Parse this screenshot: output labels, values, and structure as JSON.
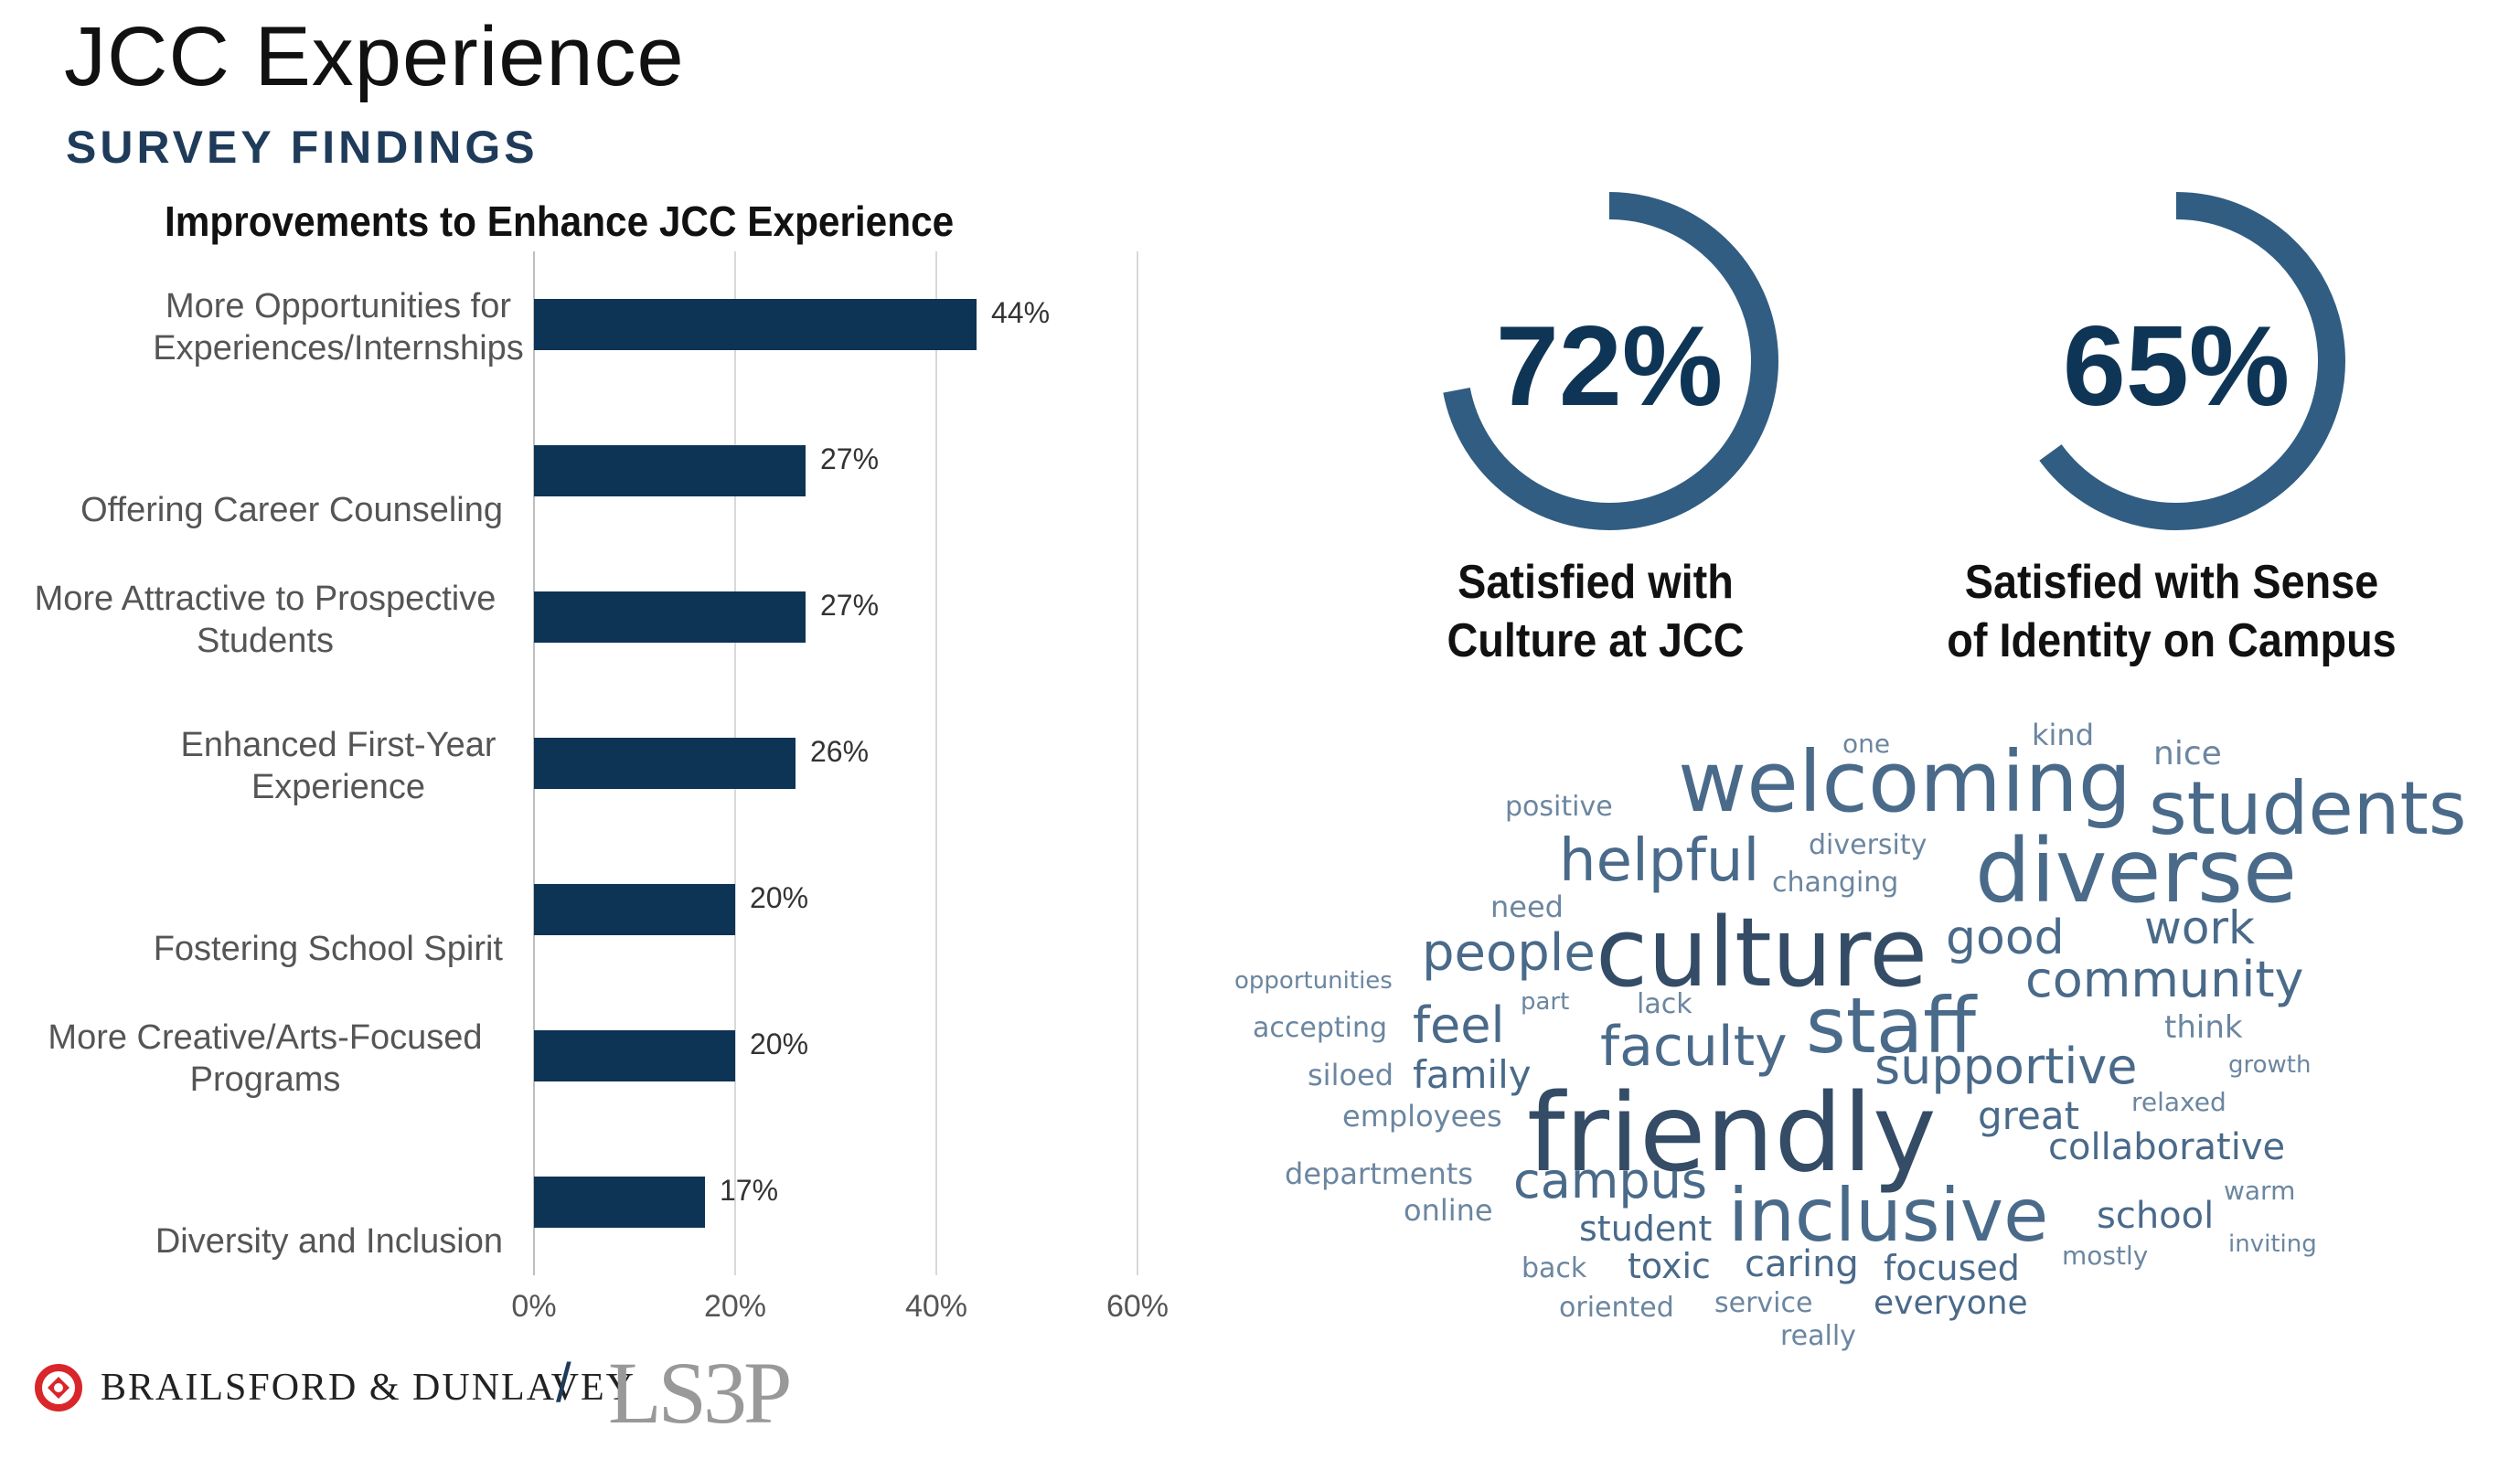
{
  "header": {
    "title": "JCC Experience",
    "subtitle": "SURVEY FINDINGS"
  },
  "chart_data": {
    "type": "bar",
    "orientation": "horizontal",
    "title": "Improvements to Enhance JCC Experience",
    "categories": [
      [
        "More Opportunities for",
        "Experiences/Internships"
      ],
      [
        "Offering Career Counseling"
      ],
      [
        "More Attractive to Prospective",
        "Students"
      ],
      [
        "Enhanced First-Year",
        "Experience"
      ],
      [
        "Fostering School Spirit"
      ],
      [
        "More Creative/Arts-Focused",
        "Programs"
      ],
      [
        "Diversity and Inclusion"
      ]
    ],
    "values": [
      44,
      27,
      27,
      26,
      20,
      20,
      17
    ],
    "value_labels": [
      "44%",
      "27%",
      "27%",
      "26%",
      "20%",
      "20%",
      "17%"
    ],
    "xlim": [
      0,
      60
    ],
    "xticks": [
      "0%",
      "20%",
      "40%",
      "60%"
    ],
    "grid": true,
    "bar_color": "#0d3355"
  },
  "stats": [
    {
      "value": "72%",
      "fraction": 0.72,
      "label_line1": "Satisfied with",
      "label_line2": "Culture at JCC"
    },
    {
      "value": "65%",
      "fraction": 0.65,
      "label_line1": "Satisfied with Sense",
      "label_line2": "of Identity on Campus"
    }
  ],
  "colors": {
    "donut": "#315d82",
    "title_blue": "#1f3b5a",
    "word_dark": "#344c66",
    "word_mid": "#4a6a8a",
    "word_light": "#6b86a0"
  },
  "word_cloud": [
    {
      "text": "welcoming",
      "tone": "mid"
    },
    {
      "text": "students",
      "tone": "mid"
    },
    {
      "text": "diverse",
      "tone": "mid"
    },
    {
      "text": "culture",
      "tone": "dark"
    },
    {
      "text": "friendly",
      "tone": "dark"
    },
    {
      "text": "inclusive",
      "tone": "mid"
    },
    {
      "text": "staff",
      "tone": "mid"
    },
    {
      "text": "helpful",
      "tone": "mid"
    },
    {
      "text": "faculty",
      "tone": "mid"
    },
    {
      "text": "community",
      "tone": "mid"
    },
    {
      "text": "supportive",
      "tone": "mid"
    },
    {
      "text": "people",
      "tone": "mid"
    },
    {
      "text": "good",
      "tone": "mid"
    },
    {
      "text": "work",
      "tone": "mid"
    },
    {
      "text": "campus",
      "tone": "mid"
    },
    {
      "text": "feel",
      "tone": "mid"
    },
    {
      "text": "family",
      "tone": "mid"
    },
    {
      "text": "great",
      "tone": "mid"
    },
    {
      "text": "collaborative",
      "tone": "mid"
    },
    {
      "text": "caring",
      "tone": "mid"
    },
    {
      "text": "focused",
      "tone": "mid"
    },
    {
      "text": "school",
      "tone": "mid"
    },
    {
      "text": "student",
      "tone": "mid"
    },
    {
      "text": "toxic",
      "tone": "mid"
    },
    {
      "text": "everyone",
      "tone": "mid"
    },
    {
      "text": "nice",
      "tone": "light"
    },
    {
      "text": "kind",
      "tone": "light"
    },
    {
      "text": "one",
      "tone": "light"
    },
    {
      "text": "positive",
      "tone": "light"
    },
    {
      "text": "diversity",
      "tone": "light"
    },
    {
      "text": "changing",
      "tone": "light"
    },
    {
      "text": "need",
      "tone": "light"
    },
    {
      "text": "think",
      "tone": "light"
    },
    {
      "text": "opportunities",
      "tone": "light"
    },
    {
      "text": "accepting",
      "tone": "light"
    },
    {
      "text": "part",
      "tone": "light"
    },
    {
      "text": "lack",
      "tone": "light"
    },
    {
      "text": "siloed",
      "tone": "light"
    },
    {
      "text": "growth",
      "tone": "light"
    },
    {
      "text": "employees",
      "tone": "light"
    },
    {
      "text": "relaxed",
      "tone": "light"
    },
    {
      "text": "departments",
      "tone": "light"
    },
    {
      "text": "online",
      "tone": "light"
    },
    {
      "text": "warm",
      "tone": "light"
    },
    {
      "text": "inviting",
      "tone": "light"
    },
    {
      "text": "mostly",
      "tone": "light"
    },
    {
      "text": "back",
      "tone": "light"
    },
    {
      "text": "oriented",
      "tone": "light"
    },
    {
      "text": "service",
      "tone": "light"
    },
    {
      "text": "really",
      "tone": "light"
    }
  ],
  "footer": {
    "brand": "BRAILSFORD & DUNLAVEY",
    "separator": "/",
    "partner": "LS3P"
  }
}
